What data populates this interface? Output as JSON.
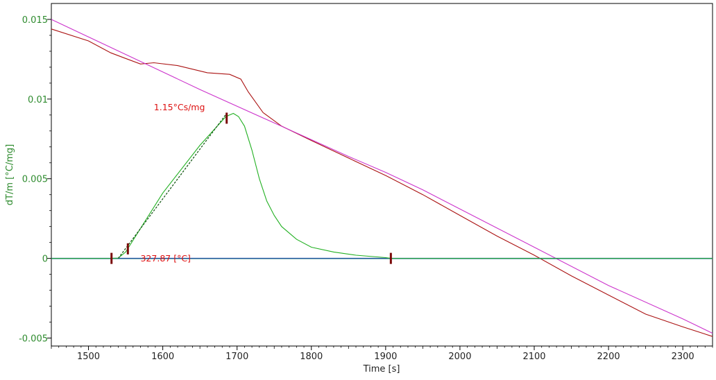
{
  "chart_data": {
    "type": "line",
    "title": "",
    "xlabel": "Time [s]",
    "ylabel": "dT/m  [°C/mg]",
    "xlim": [
      1450,
      2340
    ],
    "ylim": [
      -0.0055,
      0.016
    ],
    "grid": false,
    "legend": "none",
    "x_ticks": [
      1500,
      1600,
      1700,
      1800,
      1900,
      2000,
      2100,
      2200,
      2300
    ],
    "x_tick_labels": [
      "1500",
      "1600",
      "1700",
      "1800",
      "1900",
      "2000",
      "2100",
      "2200",
      "2300"
    ],
    "y_ticks": [
      0.015,
      0.01,
      0.005,
      0,
      -0.005
    ],
    "y_tick_labels": [
      "0.015",
      "0.01",
      "0.005",
      "0",
      "-0.005"
    ],
    "colors": {
      "axis_label": "#2e8b2e",
      "peak_curve": "#22b022",
      "temperature_curve": "#aa1111",
      "reference_curve": "#cc33cc",
      "baseline": "#1f3fae",
      "baseline_overlay": "#1f7f7f",
      "tangent_line": "#1a5a1a",
      "markers": "#7a0a0a",
      "annotation_text": "#dd1111"
    },
    "series": [
      {
        "key": "temperature",
        "values": [
          [
            1450,
            0.0144
          ],
          [
            1500,
            0.01365
          ],
          [
            1530,
            0.0129
          ],
          [
            1550,
            0.01255
          ],
          [
            1570,
            0.0122
          ],
          [
            1588,
            0.01228
          ],
          [
            1620,
            0.0121
          ],
          [
            1660,
            0.01165
          ],
          [
            1690,
            0.01155
          ],
          [
            1705,
            0.01125
          ],
          [
            1715,
            0.01045
          ],
          [
            1735,
            0.00915
          ],
          [
            1760,
            0.0083
          ],
          [
            1800,
            0.0074
          ],
          [
            1850,
            0.0063
          ],
          [
            1900,
            0.0052
          ],
          [
            1950,
            0.004
          ],
          [
            2000,
            0.0027
          ],
          [
            2050,
            0.0014
          ],
          [
            2100,
            0.0002
          ],
          [
            2150,
            -0.0011
          ],
          [
            2200,
            -0.0023
          ],
          [
            2250,
            -0.0035
          ],
          [
            2300,
            -0.0043
          ],
          [
            2340,
            -0.0049
          ]
        ]
      },
      {
        "key": "reference",
        "values": [
          [
            1450,
            0.015
          ],
          [
            1550,
            0.0128
          ],
          [
            1650,
            0.0106
          ],
          [
            1750,
            0.0085
          ],
          [
            1850,
            0.0064
          ],
          [
            1900,
            0.0054
          ],
          [
            1950,
            0.0043
          ],
          [
            2000,
            0.0031
          ],
          [
            2100,
            0.0007
          ],
          [
            2200,
            -0.0017
          ],
          [
            2300,
            -0.0038
          ],
          [
            2340,
            -0.0047
          ]
        ]
      },
      {
        "key": "dsc_peak",
        "values": [
          [
            1450,
            0.0
          ],
          [
            1530,
            0.0
          ],
          [
            1540,
            2e-05
          ],
          [
            1550,
            0.0004
          ],
          [
            1600,
            0.0041
          ],
          [
            1650,
            0.0071
          ],
          [
            1685,
            0.0089
          ],
          [
            1695,
            0.0091
          ],
          [
            1702,
            0.0089
          ],
          [
            1710,
            0.0083
          ],
          [
            1720,
            0.0068
          ],
          [
            1730,
            0.005
          ],
          [
            1740,
            0.0036
          ],
          [
            1750,
            0.0027
          ],
          [
            1760,
            0.002
          ],
          [
            1780,
            0.0012
          ],
          [
            1800,
            0.0007
          ],
          [
            1830,
            0.0004
          ],
          [
            1860,
            0.0002
          ],
          [
            1900,
            5e-05
          ],
          [
            1907,
            0.0
          ],
          [
            2340,
            0.0
          ]
        ]
      },
      {
        "key": "baseline",
        "values": [
          [
            1450,
            0.0
          ],
          [
            2340,
            0.0
          ]
        ]
      },
      {
        "key": "tangent",
        "values": [
          [
            1540,
            0.0
          ],
          [
            1686,
            0.0091
          ]
        ]
      }
    ],
    "markers_x": [
      1531,
      1553,
      1686,
      1907
    ],
    "markers_y": [
      0.0,
      0.0006,
      0.0088,
      0.0
    ],
    "annotations": [
      {
        "text": "1.15°Cs/mg",
        "x": 1588,
        "y": 0.0093
      },
      {
        "text": "327.87 [°C]",
        "x": 1570,
        "y": -0.0002
      }
    ]
  }
}
